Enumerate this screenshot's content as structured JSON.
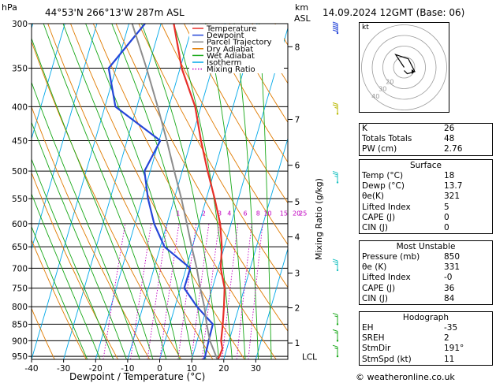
{
  "header": {
    "pressure_unit": "hPa",
    "location": "44°53'N  266°13'W  287m  ASL",
    "height_unit_line1": "km",
    "height_unit_line2": "ASL",
    "datetime": "14.09.2024  12GMT  (Base: 06)"
  },
  "legend": {
    "items": [
      {
        "label": "Temperature",
        "color": "#e8302a",
        "dash": "solid"
      },
      {
        "label": "Dewpoint",
        "color": "#2546d8",
        "dash": "solid"
      },
      {
        "label": "Parcel Trajectory",
        "color": "#8c8c8c",
        "dash": "solid"
      },
      {
        "label": "Dry Adiabat",
        "color": "#e07b00",
        "dash": "solid"
      },
      {
        "label": "Wet Adiabat",
        "color": "#18a818",
        "dash": "solid"
      },
      {
        "label": "Isotherm",
        "color": "#00a8e8",
        "dash": "solid"
      },
      {
        "label": "Mixing Ratio",
        "color": "#c000c0",
        "dash": "dotted"
      }
    ]
  },
  "chart_data": {
    "type": "line",
    "chart_kind": "skew-T log-P",
    "xlabel": "Dewpoint / Temperature (°C)",
    "ylabel_left": "hPa",
    "ylabel_right": "Mixing Ratio (g/kg)",
    "xlim": [
      -40,
      40
    ],
    "ylim": [
      960,
      300
    ],
    "pressure_ticks": [
      300,
      350,
      400,
      450,
      500,
      550,
      600,
      650,
      700,
      750,
      800,
      850,
      900,
      950
    ],
    "temperature_ticks": [
      -40,
      -30,
      -20,
      -10,
      0,
      10,
      20,
      30
    ],
    "km_ticks": [
      {
        "label": "8",
        "p": 325
      },
      {
        "label": "7",
        "p": 418
      },
      {
        "label": "6",
        "p": 490
      },
      {
        "label": "5",
        "p": 556
      },
      {
        "label": "4",
        "p": 628
      },
      {
        "label": "3",
        "p": 712
      },
      {
        "label": "2",
        "p": 803
      },
      {
        "label": "1",
        "p": 907
      }
    ],
    "lcl_label": "LCL",
    "lcl_pressure": 925,
    "mixing_ratio_labels": [
      {
        "label": "1",
        "p": 590,
        "t": -7
      },
      {
        "label": "2",
        "p": 590,
        "t": 1
      },
      {
        "label": "3",
        "p": 590,
        "t": 6
      },
      {
        "label": "4",
        "p": 590,
        "t": 9
      },
      {
        "label": "6",
        "p": 590,
        "t": 14
      },
      {
        "label": "8",
        "p": 590,
        "t": 18
      },
      {
        "label": "10",
        "p": 590,
        "t": 21
      },
      {
        "label": "15",
        "p": 590,
        "t": 26
      },
      {
        "label": "20",
        "p": 590,
        "t": 30
      },
      {
        "label": "25",
        "p": 590,
        "t": 32
      }
    ],
    "series": [
      {
        "name": "Temperature",
        "color": "#e8302a",
        "points": [
          [
            960,
            18
          ],
          [
            950,
            18.4
          ],
          [
            925,
            18.6
          ],
          [
            900,
            17.5
          ],
          [
            850,
            16.5
          ],
          [
            800,
            15.3
          ],
          [
            750,
            13.8
          ],
          [
            700,
            10.8
          ],
          [
            650,
            9.2
          ],
          [
            600,
            6.6
          ],
          [
            550,
            2.6
          ],
          [
            500,
            -2.1
          ],
          [
            450,
            -6.9
          ],
          [
            400,
            -11.8
          ],
          [
            350,
            -19.5
          ],
          [
            300,
            -26
          ]
        ]
      },
      {
        "name": "Dewpoint",
        "color": "#2546d8",
        "points": [
          [
            960,
            13.7
          ],
          [
            950,
            13.9
          ],
          [
            900,
            13.6
          ],
          [
            850,
            13.4
          ],
          [
            800,
            6.9
          ],
          [
            750,
            1.2
          ],
          [
            700,
            1.3
          ],
          [
            650,
            -8.7
          ],
          [
            600,
            -14
          ],
          [
            550,
            -18.2
          ],
          [
            500,
            -21.8
          ],
          [
            450,
            -19.6
          ],
          [
            400,
            -36.7
          ],
          [
            350,
            -42.3
          ],
          [
            300,
            -35
          ]
        ]
      },
      {
        "name": "Parcel Trajectory",
        "color": "#8c8c8c",
        "points": [
          [
            960,
            18
          ],
          [
            925,
            15.7
          ],
          [
            900,
            14
          ],
          [
            850,
            11.5
          ],
          [
            800,
            9.2
          ],
          [
            750,
            6.2
          ],
          [
            700,
            3.3
          ],
          [
            650,
            -0.2
          ],
          [
            600,
            -3.8
          ],
          [
            550,
            -7.8
          ],
          [
            500,
            -12.5
          ],
          [
            450,
            -17.6
          ],
          [
            400,
            -23.5
          ],
          [
            350,
            -30.5
          ],
          [
            300,
            -39
          ]
        ]
      }
    ],
    "wind_barbs": [
      {
        "p": 310,
        "speed_kt": 50,
        "color": "#2546d8"
      },
      {
        "p": 410,
        "speed_kt": 15,
        "color": "#b8b800"
      },
      {
        "p": 520,
        "speed_kt": 15,
        "color": "#18c0c0"
      },
      {
        "p": 705,
        "speed_kt": 15,
        "color": "#18c0c0"
      },
      {
        "p": 850,
        "speed_kt": 5,
        "color": "#18a818"
      },
      {
        "p": 900,
        "speed_kt": 5,
        "color": "#18a818"
      },
      {
        "p": 950,
        "speed_kt": 5,
        "color": "#18a818"
      }
    ]
  },
  "hodograph": {
    "unit_label": "kt",
    "ring_labels": [
      "20",
      "30",
      "40"
    ],
    "points_kt": [
      [
        0,
        0
      ],
      [
        -2,
        3
      ],
      [
        -8,
        12
      ],
      [
        4,
        8
      ],
      [
        10,
        -4
      ],
      [
        3,
        -6
      ],
      [
        0,
        -3
      ]
    ]
  },
  "indices": {
    "rows": [
      {
        "label": "K",
        "value": "26"
      },
      {
        "label": "Totals Totals",
        "value": "48"
      },
      {
        "label": "PW (cm)",
        "value": "2.76"
      }
    ]
  },
  "surface": {
    "title": "Surface",
    "rows": [
      {
        "label": "Temp (°C)",
        "value": "18"
      },
      {
        "label": "Dewp (°C)",
        "value": "13.7"
      },
      {
        "label": "θe(K)",
        "value": "321"
      },
      {
        "label": "Lifted Index",
        "value": "5"
      },
      {
        "label": "CAPE (J)",
        "value": "0"
      },
      {
        "label": "CIN (J)",
        "value": "0"
      }
    ]
  },
  "most_unstable": {
    "title": "Most Unstable",
    "rows": [
      {
        "label": "Pressure (mb)",
        "value": "850"
      },
      {
        "label": "θe (K)",
        "value": "331"
      },
      {
        "label": "Lifted Index",
        "value": "-0"
      },
      {
        "label": "CAPE (J)",
        "value": "36"
      },
      {
        "label": "CIN (J)",
        "value": "84"
      }
    ]
  },
  "hodograph_table": {
    "title": "Hodograph",
    "rows": [
      {
        "label": "EH",
        "value": "-35"
      },
      {
        "label": "SREH",
        "value": "2"
      },
      {
        "label": "StmDir",
        "value": "191°"
      },
      {
        "label": "StmSpd (kt)",
        "value": "11"
      }
    ]
  },
  "footer": {
    "copyright": "© weatheronline.co.uk"
  }
}
